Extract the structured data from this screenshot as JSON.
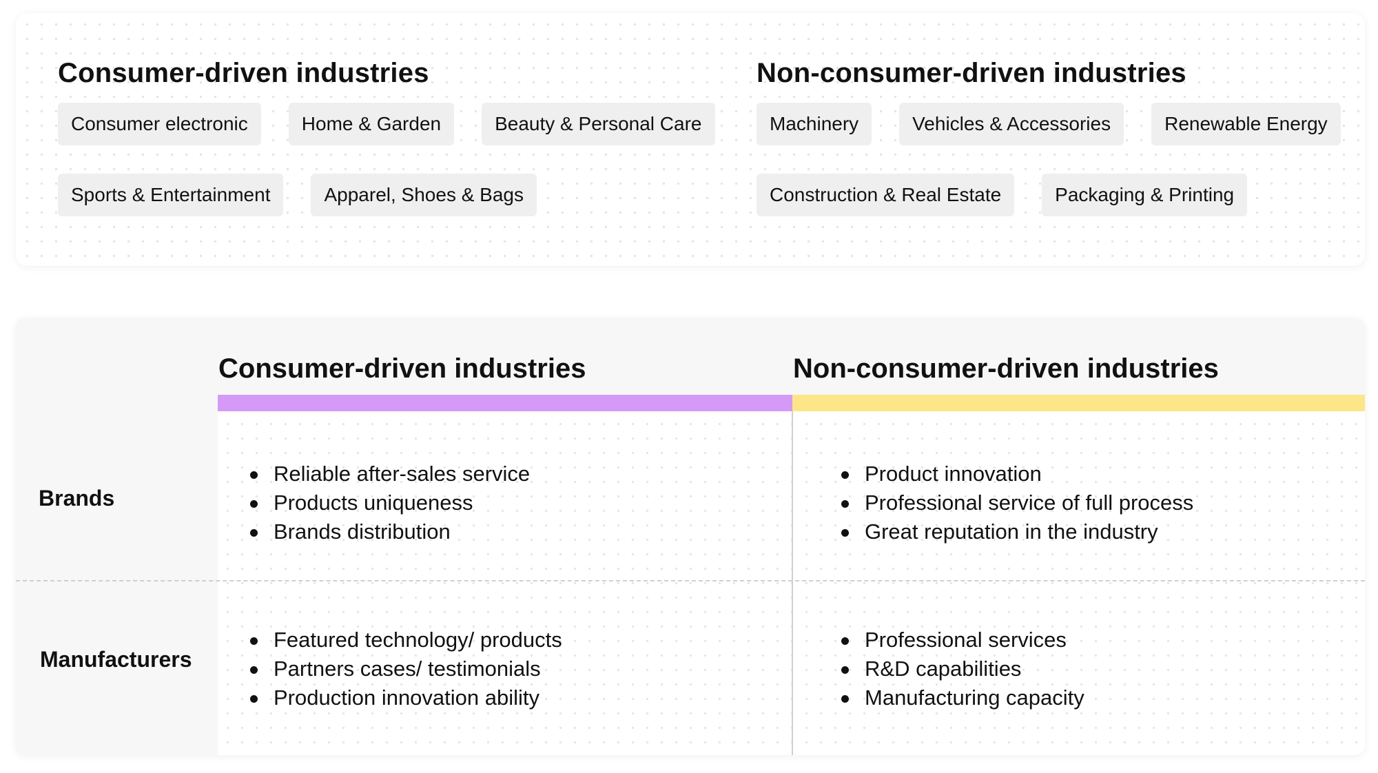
{
  "top": {
    "left": {
      "title": "Consumer-driven industries",
      "tags": [
        [
          "Consumer electronic",
          "Home & Garden",
          "Beauty & Personal Care"
        ],
        [
          "Sports & Entertainment",
          "Apparel, Shoes & Bags"
        ]
      ]
    },
    "right": {
      "title": "Non-consumer-driven industries",
      "tags": [
        [
          "Machinery",
          "Vehicles & Accessories",
          "Renewable Energy"
        ],
        [
          "Construction & Real Estate",
          "Packaging & Printing"
        ]
      ]
    }
  },
  "matrix": {
    "columns": [
      {
        "title": "Consumer-driven industries",
        "color": "#d59af7"
      },
      {
        "title": "Non-consumer-driven industries",
        "color": "#fde58a"
      }
    ],
    "rows": [
      {
        "label": "Brands",
        "cells": [
          [
            "Reliable after-sales service",
            "Products uniqueness",
            "Brands distribution"
          ],
          [
            "Product innovation",
            "Professional service of full process",
            "Great reputation in the industry"
          ]
        ]
      },
      {
        "label": "Manufacturers",
        "cells": [
          [
            "Featured technology/ products",
            "Partners cases/ testimonials",
            "Production innovation ability"
          ],
          [
            "Professional services",
            "R&D capabilities",
            "Manufacturing capacity"
          ]
        ]
      }
    ]
  }
}
